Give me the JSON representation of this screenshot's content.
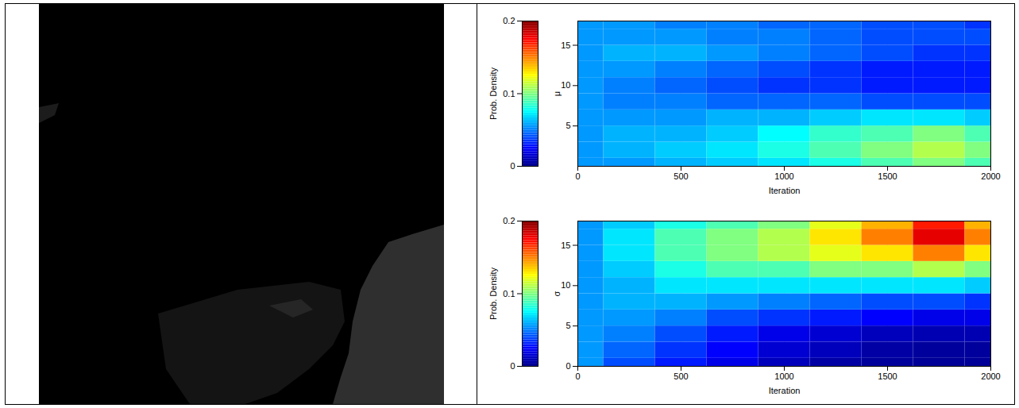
{
  "chart_data": [
    {
      "type": "heatmap",
      "x_label": "Iteration",
      "y_label": "μ",
      "x": [
        0,
        250,
        500,
        750,
        1000,
        1250,
        1500,
        1750,
        2000
      ],
      "y": [
        0,
        2,
        4,
        6,
        8,
        10,
        12,
        14,
        16,
        18
      ],
      "values": [
        [
          0.055,
          0.055,
          0.06,
          0.065,
          0.07,
          0.08,
          0.09,
          0.1,
          0.09
        ],
        [
          0.055,
          0.06,
          0.065,
          0.07,
          0.08,
          0.09,
          0.1,
          0.11,
          0.1
        ],
        [
          0.055,
          0.06,
          0.06,
          0.065,
          0.075,
          0.085,
          0.09,
          0.1,
          0.09
        ],
        [
          0.055,
          0.055,
          0.055,
          0.06,
          0.06,
          0.065,
          0.07,
          0.07,
          0.065
        ],
        [
          0.055,
          0.05,
          0.05,
          0.045,
          0.045,
          0.045,
          0.04,
          0.04,
          0.04
        ],
        [
          0.055,
          0.05,
          0.045,
          0.04,
          0.035,
          0.035,
          0.03,
          0.03,
          0.03
        ],
        [
          0.055,
          0.055,
          0.05,
          0.045,
          0.04,
          0.035,
          0.03,
          0.03,
          0.03
        ],
        [
          0.055,
          0.06,
          0.06,
          0.055,
          0.05,
          0.045,
          0.04,
          0.035,
          0.035
        ],
        [
          0.055,
          0.055,
          0.055,
          0.05,
          0.05,
          0.045,
          0.04,
          0.04,
          0.04
        ],
        [
          0.055,
          0.055,
          0.05,
          0.05,
          0.045,
          0.045,
          0.04,
          0.04,
          0.035
        ]
      ],
      "xlim": [
        0,
        2000
      ],
      "xticks": [
        0,
        500,
        1000,
        1500,
        2000
      ],
      "ylim": [
        0,
        18
      ],
      "yticks": [
        5,
        10,
        15
      ],
      "colorbar_label": "Prob. Density",
      "colorbar_range": [
        0,
        0.2
      ],
      "colorbar_ticks": [
        0,
        0.1,
        0.2
      ],
      "grid": true
    },
    {
      "type": "heatmap",
      "x_label": "Iteration",
      "y_label": "σ",
      "x": [
        0,
        250,
        500,
        750,
        1000,
        1250,
        1500,
        1750,
        2000
      ],
      "y": [
        0,
        2,
        4,
        6,
        8,
        10,
        12,
        14,
        16,
        18
      ],
      "values": [
        [
          0.055,
          0.04,
          0.03,
          0.02,
          0.01,
          0.005,
          0.003,
          0.002,
          0.002
        ],
        [
          0.055,
          0.045,
          0.035,
          0.025,
          0.015,
          0.01,
          0.005,
          0.003,
          0.003
        ],
        [
          0.055,
          0.05,
          0.04,
          0.03,
          0.02,
          0.015,
          0.01,
          0.008,
          0.008
        ],
        [
          0.055,
          0.055,
          0.05,
          0.04,
          0.035,
          0.03,
          0.025,
          0.02,
          0.02
        ],
        [
          0.055,
          0.06,
          0.06,
          0.055,
          0.05,
          0.045,
          0.04,
          0.04,
          0.035
        ],
        [
          0.055,
          0.06,
          0.07,
          0.07,
          0.07,
          0.07,
          0.07,
          0.07,
          0.065
        ],
        [
          0.055,
          0.065,
          0.08,
          0.09,
          0.09,
          0.1,
          0.1,
          0.11,
          0.1
        ],
        [
          0.055,
          0.07,
          0.09,
          0.1,
          0.11,
          0.12,
          0.13,
          0.15,
          0.13
        ],
        [
          0.055,
          0.07,
          0.09,
          0.1,
          0.11,
          0.13,
          0.15,
          0.18,
          0.15
        ],
        [
          0.055,
          0.065,
          0.08,
          0.09,
          0.1,
          0.12,
          0.14,
          0.17,
          0.14
        ]
      ],
      "xlim": [
        0,
        2000
      ],
      "xticks": [
        0,
        500,
        1000,
        1500,
        2000
      ],
      "ylim": [
        0,
        18
      ],
      "yticks": [
        0,
        5,
        10,
        15
      ],
      "colorbar_label": "Prob. Density",
      "colorbar_range": [
        0,
        0.2
      ],
      "colorbar_ticks": [
        0,
        0.1,
        0.2
      ],
      "grid": true
    }
  ]
}
